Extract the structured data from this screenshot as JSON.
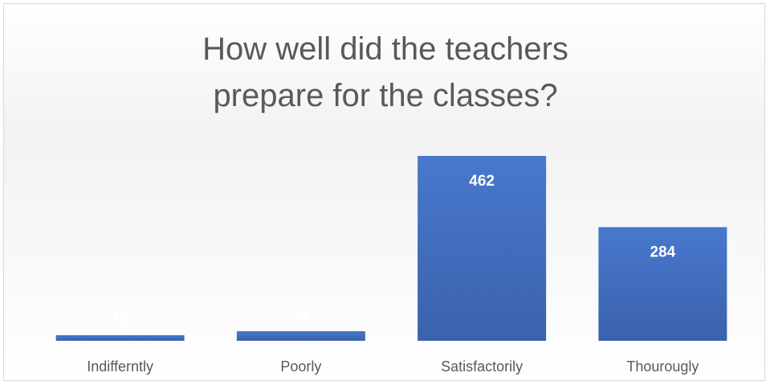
{
  "chart_data": {
    "type": "bar",
    "title": "How well did the teachers prepare for the classes?",
    "categories": [
      "Indifferntly",
      "Poorly",
      "Satisfactorily",
      "Thourougly"
    ],
    "values": [
      14,
      24,
      462,
      284
    ],
    "color": "#4472c4"
  }
}
